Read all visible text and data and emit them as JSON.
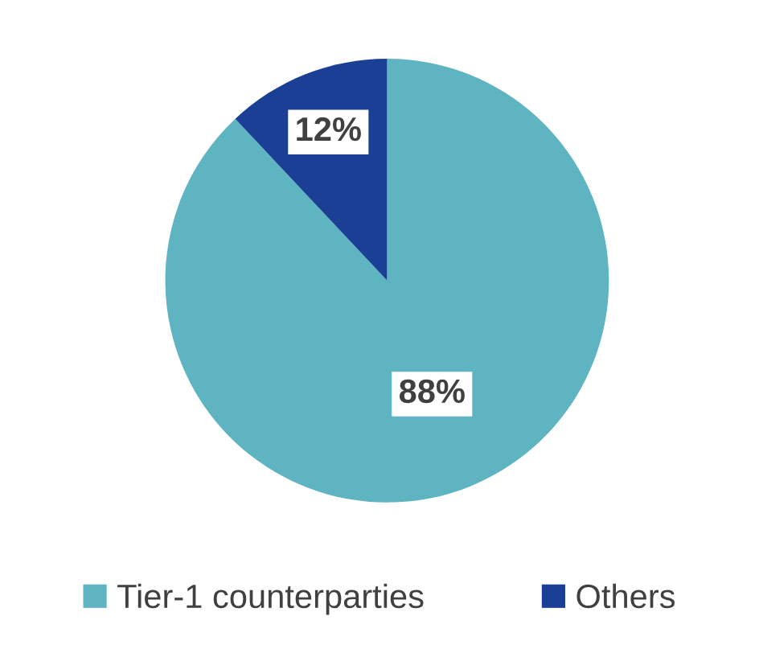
{
  "chart_data": {
    "type": "pie",
    "categories": [
      "Tier-1 counterparties",
      "Others"
    ],
    "values": [
      88,
      12
    ],
    "colors": [
      "#5fb4c2",
      "#1b3f94"
    ],
    "value_labels": [
      "88%",
      "12%"
    ],
    "legend": "bottom"
  }
}
